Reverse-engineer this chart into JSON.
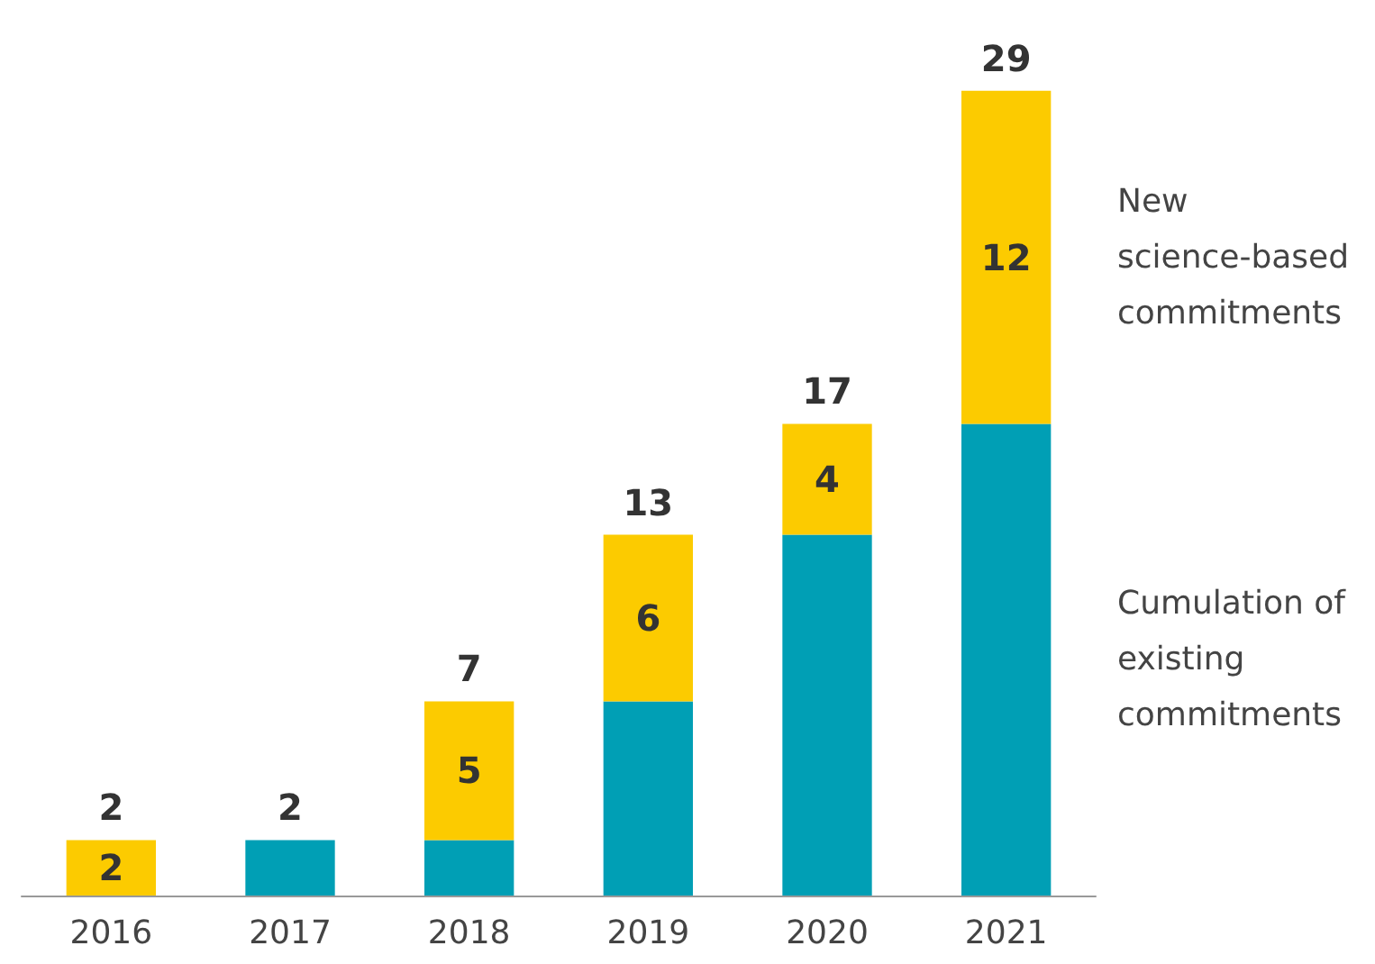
{
  "chart_data": {
    "type": "bar",
    "stacked": true,
    "categories": [
      "2016",
      "2017",
      "2018",
      "2019",
      "2020",
      "2021"
    ],
    "series": [
      {
        "name": "Cumulation of existing commitments",
        "color": "#009fb5",
        "values": [
          0,
          2,
          2,
          7,
          13,
          17
        ]
      },
      {
        "name": "New science-based commitments",
        "color": "#fccb00",
        "values": [
          2,
          0,
          5,
          6,
          4,
          12
        ],
        "value_labels": [
          "2",
          null,
          "5",
          "6",
          "4",
          "12"
        ]
      }
    ],
    "totals": [
      "2",
      "2",
      "7",
      "13",
      "17",
      "29"
    ]
  }
}
